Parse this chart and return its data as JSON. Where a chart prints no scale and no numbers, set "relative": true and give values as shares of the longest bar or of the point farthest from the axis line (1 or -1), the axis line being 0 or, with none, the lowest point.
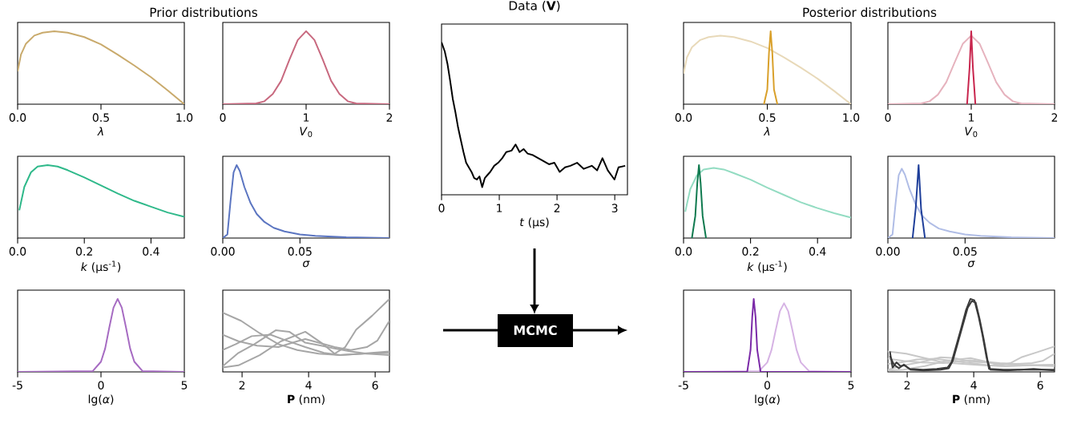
{
  "chart_data": [
    {
      "type": "line",
      "relative": true,
      "xlabel": "*λ*",
      "xlim": [
        0,
        1
      ],
      "xticks": [
        {
          "value": 0,
          "label": "0.0"
        },
        {
          "value": 0.5,
          "label": "0.5"
        },
        {
          "value": 1,
          "label": "1.0"
        }
      ],
      "series": [
        {
          "color": "#c9aa6c",
          "x": [
            0,
            0.02,
            0.05,
            0.1,
            0.15,
            0.22,
            0.3,
            0.4,
            0.5,
            0.6,
            0.7,
            0.8,
            0.9,
            1.0
          ],
          "values": [
            0.45,
            0.68,
            0.83,
            0.94,
            0.98,
            1.0,
            0.98,
            0.92,
            0.82,
            0.68,
            0.53,
            0.37,
            0.19,
            0
          ]
        }
      ]
    },
    {
      "type": "line",
      "relative": true,
      "xlabel": "*V*$_{0}$",
      "xlim": [
        0,
        2
      ],
      "xticks": [
        0,
        1,
        2
      ],
      "series": [
        {
          "color": "#c8697f",
          "x": [
            0,
            0.4,
            0.5,
            0.6,
            0.7,
            0.8,
            0.9,
            1.0,
            1.1,
            1.2,
            1.3,
            1.4,
            1.5,
            1.6,
            2.0
          ],
          "values": [
            0,
            0.01,
            0.04,
            0.14,
            0.32,
            0.61,
            0.88,
            1,
            0.88,
            0.61,
            0.32,
            0.14,
            0.04,
            0.01,
            0
          ]
        }
      ]
    },
    {
      "type": "line",
      "relative": true,
      "title": "Data (**V**)",
      "xlabel": "*t* (μs)",
      "xlim": [
        0,
        3.22
      ],
      "xticks": [
        0,
        1,
        2,
        3
      ],
      "series": [
        {
          "color": "#000000",
          "x": [
            0,
            0.056,
            0.102,
            0.148,
            0.194,
            0.241,
            0.287,
            0.333,
            0.38,
            0.426,
            0.472,
            0.519,
            0.565,
            0.611,
            0.657,
            0.704,
            0.75,
            0.796,
            0.843,
            0.912,
            0.981,
            1.051,
            1.12,
            1.213,
            1.282,
            1.352,
            1.421,
            1.491,
            1.583,
            1.676,
            1.769,
            1.861,
            1.954,
            2.046,
            2.139,
            2.231,
            2.347,
            2.463,
            2.602,
            2.694,
            2.787,
            2.88,
            2.995,
            3.065,
            3.181
          ],
          "values": [
            1.0,
            0.94,
            0.86,
            0.75,
            0.63,
            0.54,
            0.44,
            0.36,
            0.28,
            0.21,
            0.18,
            0.15,
            0.11,
            0.1,
            0.12,
            0.05,
            0.11,
            0.13,
            0.15,
            0.19,
            0.21,
            0.24,
            0.28,
            0.29,
            0.33,
            0.28,
            0.3,
            0.27,
            0.26,
            0.24,
            0.22,
            0.2,
            0.21,
            0.15,
            0.18,
            0.19,
            0.21,
            0.17,
            0.19,
            0.16,
            0.24,
            0.16,
            0.1,
            0.18,
            0.19
          ]
        }
      ]
    },
    {
      "type": "line",
      "relative": true,
      "xlabel": "*λ*",
      "xlim": [
        0,
        1
      ],
      "xticks": [
        {
          "value": 0,
          "label": "0.0"
        },
        {
          "value": 0.5,
          "label": "0.5"
        },
        {
          "value": 1,
          "label": "1.0"
        }
      ],
      "series": [
        {
          "color": "#e8d9b9",
          "x": [
            0,
            0.02,
            0.05,
            0.1,
            0.15,
            0.22,
            0.3,
            0.4,
            0.5,
            0.6,
            0.7,
            0.8,
            0.9,
            1.0
          ],
          "values": [
            0.42,
            0.64,
            0.78,
            0.88,
            0.92,
            0.94,
            0.92,
            0.86,
            0.77,
            0.64,
            0.5,
            0.35,
            0.18,
            0
          ]
        },
        {
          "color": "#d9a02a",
          "x": [
            0.48,
            0.5,
            0.51,
            0.52,
            0.53,
            0.54,
            0.56
          ],
          "values": [
            0,
            0.2,
            0.7,
            1.0,
            0.7,
            0.2,
            0
          ]
        }
      ]
    },
    {
      "type": "line",
      "relative": true,
      "xlabel": "*V*$_{0}$",
      "xlim": [
        0,
        2
      ],
      "xticks": [
        0,
        1,
        2
      ],
      "series": [
        {
          "color": "#e6b3be",
          "x": [
            0,
            0.4,
            0.5,
            0.6,
            0.7,
            0.8,
            0.9,
            1.0,
            1.1,
            1.2,
            1.3,
            1.4,
            1.5,
            1.6,
            2.0
          ],
          "values": [
            0,
            0.01,
            0.04,
            0.13,
            0.3,
            0.57,
            0.83,
            0.94,
            0.83,
            0.57,
            0.3,
            0.13,
            0.04,
            0.01,
            0
          ]
        },
        {
          "color": "#c8254d",
          "x": [
            0.95,
            0.98,
            1.0,
            1.02,
            1.05
          ],
          "values": [
            0,
            0.5,
            1,
            0.5,
            0
          ]
        }
      ]
    },
    {
      "type": "line",
      "relative": true,
      "xlabel": "*k* (μs$^{-1}$)",
      "xlim": [
        0,
        0.5
      ],
      "xticks": [
        {
          "value": 0,
          "label": "0.0"
        },
        0.2,
        0.4
      ],
      "series": [
        {
          "color": "#2fb98a",
          "x": [
            0.005,
            0.02,
            0.04,
            0.06,
            0.09,
            0.12,
            0.15,
            0.2,
            0.25,
            0.3,
            0.35,
            0.4,
            0.45,
            0.5
          ],
          "values": [
            0.38,
            0.7,
            0.9,
            0.98,
            1.0,
            0.98,
            0.93,
            0.83,
            0.72,
            0.61,
            0.51,
            0.43,
            0.35,
            0.29
          ]
        }
      ]
    },
    {
      "type": "line",
      "relative": true,
      "xlabel": "*σ*",
      "xlim": [
        0,
        0.108
      ],
      "xticks": [
        {
          "value": 0,
          "label": "0.00"
        },
        0.05
      ],
      "series": [
        {
          "color": "#5b75c1",
          "x": [
            0,
            0.003,
            0.005,
            0.007,
            0.009,
            0.011,
            0.014,
            0.018,
            0.022,
            0.027,
            0.033,
            0.04,
            0.05,
            0.06,
            0.08,
            0.108
          ],
          "values": [
            0,
            0.05,
            0.5,
            0.9,
            1.0,
            0.92,
            0.7,
            0.48,
            0.33,
            0.22,
            0.14,
            0.09,
            0.05,
            0.03,
            0.01,
            0
          ]
        }
      ]
    },
    {
      "type": "line",
      "relative": true,
      "xlabel": "*k* (μs$^{-1}$)",
      "xlim": [
        0,
        0.5
      ],
      "xticks": [
        {
          "value": 0,
          "label": "0.0"
        },
        0.2,
        0.4
      ],
      "series": [
        {
          "color": "#93dcc2",
          "x": [
            0.005,
            0.02,
            0.04,
            0.06,
            0.09,
            0.12,
            0.15,
            0.2,
            0.25,
            0.3,
            0.35,
            0.4,
            0.45,
            0.5
          ],
          "values": [
            0.36,
            0.67,
            0.86,
            0.94,
            0.96,
            0.94,
            0.89,
            0.8,
            0.69,
            0.59,
            0.49,
            0.41,
            0.34,
            0.28
          ]
        },
        {
          "color": "#0f7a4f",
          "x": [
            0.025,
            0.035,
            0.041,
            0.046,
            0.051,
            0.057,
            0.067
          ],
          "values": [
            0,
            0.3,
            0.75,
            1,
            0.75,
            0.3,
            0
          ]
        }
      ]
    },
    {
      "type": "line",
      "relative": true,
      "xlabel": "*σ*",
      "xlim": [
        0,
        0.108
      ],
      "xticks": [
        {
          "value": 0,
          "label": "0.00"
        },
        0.05
      ],
      "series": [
        {
          "color": "#b0bde6",
          "x": [
            0,
            0.003,
            0.005,
            0.007,
            0.009,
            0.011,
            0.014,
            0.018,
            0.022,
            0.027,
            0.033,
            0.04,
            0.05,
            0.06,
            0.08,
            0.108
          ],
          "values": [
            0,
            0.05,
            0.48,
            0.86,
            0.95,
            0.87,
            0.67,
            0.46,
            0.31,
            0.21,
            0.13,
            0.09,
            0.05,
            0.03,
            0.01,
            0
          ]
        },
        {
          "color": "#1f3f9a",
          "x": [
            0.016,
            0.018,
            0.0199,
            0.0215,
            0.024
          ],
          "values": [
            0,
            0.4,
            1,
            0.4,
            0
          ]
        }
      ]
    },
    {
      "type": "line",
      "relative": true,
      "xlabel": "lg(*α*)",
      "xlim": [
        -5,
        5
      ],
      "xticks": [
        -5,
        0,
        5
      ],
      "series": [
        {
          "color": "#a66bc2",
          "x": [
            -5,
            -0.5,
            0,
            0.25,
            0.5,
            0.75,
            1,
            1.25,
            1.5,
            1.75,
            2,
            2.5,
            5
          ],
          "values": [
            0,
            0.01,
            0.14,
            0.32,
            0.61,
            0.88,
            1,
            0.88,
            0.61,
            0.32,
            0.14,
            0.01,
            0
          ]
        }
      ]
    },
    {
      "type": "line",
      "relative": true,
      "xlabel": "**P** (nm)",
      "xlim": [
        1.42,
        6.43
      ],
      "xticks": [
        2,
        4,
        6
      ],
      "series": [
        {
          "color": "#a6a6a6",
          "x": [
            1.42,
            1.97,
            2.53,
            3.09,
            3.66,
            4.3,
            4.94,
            5.67,
            6.43
          ],
          "values": [
            0.81,
            0.7,
            0.53,
            0.38,
            0.3,
            0.25,
            0.23,
            0.25,
            0.26
          ]
        },
        {
          "color": "#a6a6a6",
          "x": [
            1.42,
            1.89,
            2.45,
            3.09,
            3.66,
            3.9,
            4.3,
            4.78,
            5.27,
            5.75,
            6.07,
            6.43
          ],
          "values": [
            0.51,
            0.42,
            0.36,
            0.34,
            0.42,
            0.45,
            0.4,
            0.34,
            0.3,
            0.34,
            0.43,
            0.7
          ]
        },
        {
          "color": "#a6a6a6",
          "x": [
            1.42,
            1.81,
            2.29,
            2.85,
            3.33,
            3.9,
            4.46,
            4.94,
            5.59,
            6.43
          ],
          "values": [
            0.3,
            0.38,
            0.49,
            0.51,
            0.43,
            0.34,
            0.26,
            0.23,
            0.25,
            0.28
          ]
        },
        {
          "color": "#a6a6a6",
          "x": [
            1.42,
            1.89,
            2.37,
            3.01,
            3.42,
            3.9,
            4.38,
            4.78,
            5.27,
            5.75,
            6.43
          ],
          "values": [
            0.08,
            0.26,
            0.38,
            0.57,
            0.55,
            0.4,
            0.36,
            0.32,
            0.28,
            0.25,
            0.23
          ]
        },
        {
          "color": "#a6a6a6",
          "x": [
            1.42,
            1.89,
            2.53,
            3.17,
            3.9,
            4.38,
            4.78,
            5.1,
            5.43,
            5.91,
            6.43
          ],
          "values": [
            0.06,
            0.09,
            0.23,
            0.42,
            0.55,
            0.4,
            0.25,
            0.34,
            0.58,
            0.77,
            1.0
          ]
        }
      ]
    },
    {
      "type": "line",
      "relative": true,
      "xlabel": "lg(*α*)",
      "xlim": [
        -5,
        5
      ],
      "xticks": [
        -5,
        0,
        5
      ],
      "series": [
        {
          "color": "#d6b3e4",
          "x": [
            -5,
            -0.5,
            0,
            0.25,
            0.5,
            0.75,
            1,
            1.25,
            1.5,
            1.75,
            2,
            2.5,
            5
          ],
          "values": [
            0,
            0.01,
            0.13,
            0.3,
            0.57,
            0.83,
            0.94,
            0.83,
            0.57,
            0.3,
            0.13,
            0.01,
            0
          ]
        },
        {
          "color": "#7b2aa8",
          "x": [
            -5,
            -1.2,
            -1.0,
            -0.9,
            -0.81,
            -0.7,
            -0.6,
            -0.4,
            5
          ],
          "values": [
            0,
            0,
            0.3,
            0.75,
            1,
            0.75,
            0.3,
            0,
            0
          ]
        }
      ]
    },
    {
      "type": "line",
      "relative": true,
      "xlabel": "**P** (nm)",
      "xlim": [
        1.42,
        6.43
      ],
      "xticks": [
        2,
        4,
        6
      ],
      "series": [
        {
          "color": "#c8c8c8",
          "x": [
            1.42,
            1.97,
            2.53,
            3.09,
            3.66,
            4.3,
            4.94,
            5.67,
            6.43
          ],
          "values": [
            0.28,
            0.25,
            0.19,
            0.13,
            0.11,
            0.09,
            0.08,
            0.09,
            0.09
          ]
        },
        {
          "color": "#c8c8c8",
          "x": [
            1.42,
            1.89,
            2.45,
            3.09,
            3.66,
            3.9,
            4.3,
            4.78,
            5.27,
            5.75,
            6.07,
            6.43
          ],
          "values": [
            0.18,
            0.15,
            0.13,
            0.12,
            0.15,
            0.16,
            0.14,
            0.12,
            0.11,
            0.12,
            0.15,
            0.25
          ]
        },
        {
          "color": "#c8c8c8",
          "x": [
            1.42,
            1.81,
            2.29,
            2.85,
            3.33,
            3.9,
            4.46,
            4.94,
            5.59,
            6.43
          ],
          "values": [
            0.11,
            0.13,
            0.17,
            0.18,
            0.15,
            0.12,
            0.09,
            0.08,
            0.09,
            0.1
          ]
        },
        {
          "color": "#c8c8c8",
          "x": [
            1.42,
            1.89,
            2.37,
            3.01,
            3.42,
            3.9,
            4.38,
            4.78,
            5.27,
            5.75,
            6.43
          ],
          "values": [
            0.03,
            0.09,
            0.13,
            0.2,
            0.19,
            0.14,
            0.13,
            0.11,
            0.1,
            0.09,
            0.08
          ]
        },
        {
          "color": "#c8c8c8",
          "x": [
            1.42,
            1.89,
            2.53,
            3.17,
            3.9,
            4.38,
            4.78,
            5.1,
            5.43,
            5.91,
            6.43
          ],
          "values": [
            0.02,
            0.03,
            0.08,
            0.15,
            0.19,
            0.14,
            0.09,
            0.12,
            0.2,
            0.27,
            0.35
          ]
        },
        {
          "color": "#3a3a3a",
          "x": [
            1.48,
            1.56,
            1.68,
            1.8,
            1.92,
            2.08,
            2.48,
            2.89,
            3.21,
            3.33,
            3.45,
            3.61,
            3.77,
            3.9,
            4.02,
            4.14,
            4.26,
            4.38,
            4.46,
            4.9,
            5.71,
            6.43
          ],
          "values": [
            0.28,
            0.06,
            0.13,
            0.08,
            0.09,
            0.04,
            0.03,
            0.04,
            0.06,
            0.13,
            0.32,
            0.58,
            0.85,
            1.0,
            0.98,
            0.77,
            0.51,
            0.21,
            0.04,
            0.03,
            0.03,
            0.03
          ]
        },
        {
          "color": "#3a3a3a",
          "x": [
            1.48,
            1.6,
            1.75,
            1.9,
            2.1,
            2.5,
            3.0,
            3.25,
            3.37,
            3.5,
            3.66,
            3.82,
            3.94,
            4.06,
            4.18,
            4.3,
            4.42,
            4.5,
            5.0,
            5.8,
            6.43
          ],
          "values": [
            0.22,
            0.1,
            0.05,
            0.1,
            0.03,
            0.02,
            0.03,
            0.05,
            0.15,
            0.36,
            0.62,
            0.88,
            0.97,
            0.95,
            0.72,
            0.45,
            0.15,
            0.03,
            0.02,
            0.04,
            0.02
          ]
        }
      ]
    },
    {
      "type": "other",
      "annotations": [
        "Prior distributions",
        "Posterior distributions",
        "MCMC"
      ]
    }
  ]
}
